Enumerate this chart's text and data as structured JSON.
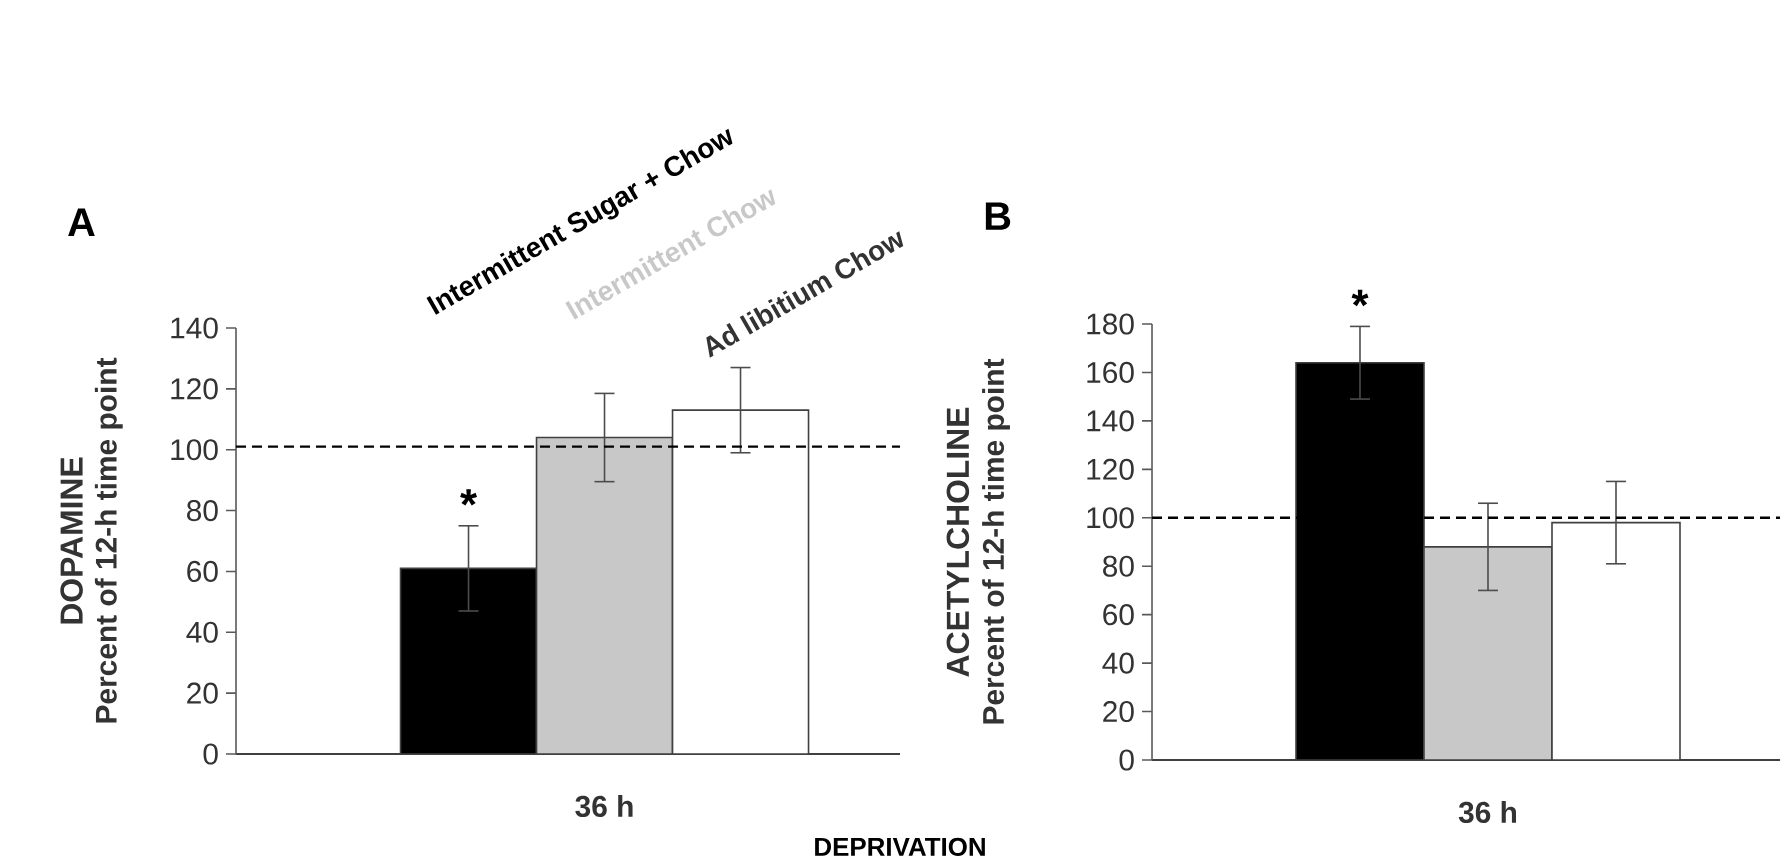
{
  "chart_data": [
    {
      "type": "bar",
      "title": "A",
      "subtitle": "DOPAMINE",
      "ylabel": "Percent of 12-h time point",
      "xlabel": "DEPRIVATION",
      "categories": [
        "36 h"
      ],
      "series": [
        {
          "name": "Intermittent Sugar + Chow",
          "color": "#000000",
          "values": [
            61
          ],
          "errors": [
            14
          ]
        },
        {
          "name": "Intermittent Chow",
          "color": "#c8c8c8",
          "values": [
            104
          ],
          "errors": [
            14.5
          ]
        },
        {
          "name": "Ad libitium Chow",
          "color": "#ffffff",
          "values": [
            113
          ],
          "errors": [
            14
          ]
        }
      ],
      "ylim": [
        0,
        140
      ],
      "yticks": [
        0,
        20,
        40,
        60,
        80,
        100,
        120,
        140
      ],
      "ref_lines": [
        {
          "axis": "y",
          "value": 101,
          "line_style": "dashed"
        }
      ],
      "annotations": [
        "*"
      ]
    },
    {
      "type": "bar",
      "title": "B",
      "subtitle": "ACETYLCHOLINE",
      "ylabel": "Percent of 12-h time point",
      "categories": [
        "36 h"
      ],
      "series": [
        {
          "color": "#000000",
          "values": [
            164
          ],
          "errors": [
            15
          ]
        },
        {
          "color": "#c8c8c8",
          "values": [
            88
          ],
          "errors": [
            18
          ]
        },
        {
          "color": "#ffffff",
          "values": [
            98
          ],
          "errors": [
            17
          ]
        }
      ],
      "ylim": [
        0,
        180
      ],
      "yticks": [
        0,
        20,
        40,
        60,
        80,
        100,
        120,
        140,
        160,
        180
      ],
      "ref_lines": [
        {
          "axis": "y",
          "value": 100,
          "line_style": "dashed"
        }
      ],
      "annotations": [
        "*"
      ]
    }
  ]
}
